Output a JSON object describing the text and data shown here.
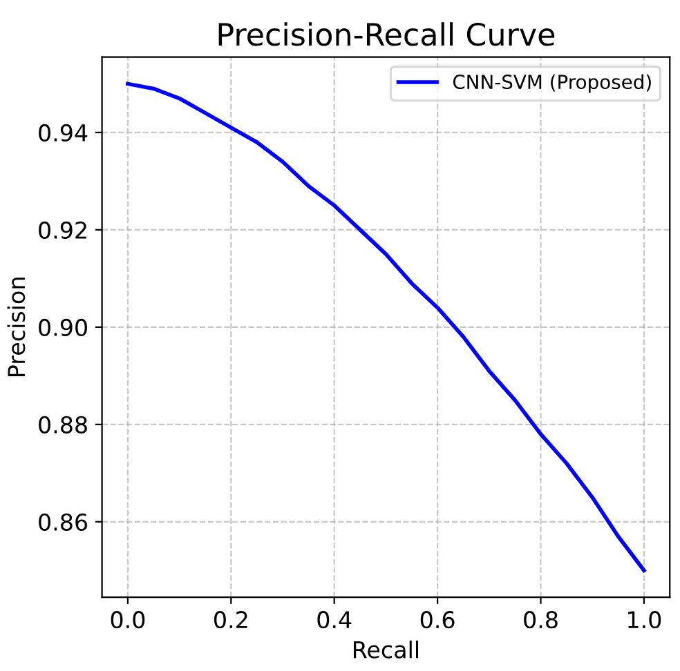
{
  "chart_data": {
    "type": "line",
    "title": "Precision-Recall Curve",
    "xlabel": "Recall",
    "ylabel": "Precision",
    "x": [
      0.0,
      0.05,
      0.1,
      0.15,
      0.2,
      0.25,
      0.3,
      0.35,
      0.4,
      0.45,
      0.5,
      0.55,
      0.6,
      0.65,
      0.7,
      0.75,
      0.8,
      0.85,
      0.9,
      0.95,
      1.0
    ],
    "series": [
      {
        "name": "CNN-SVM (Proposed)",
        "color": "#0000ff",
        "values": [
          0.95,
          0.949,
          0.947,
          0.944,
          0.941,
          0.938,
          0.934,
          0.929,
          0.925,
          0.92,
          0.915,
          0.909,
          0.904,
          0.898,
          0.891,
          0.885,
          0.878,
          0.872,
          0.865,
          0.857,
          0.85
        ]
      }
    ],
    "xlim": [
      -0.05,
      1.05
    ],
    "ylim": [
      0.8445,
      0.9555
    ],
    "xticks": [
      {
        "value": 0.0,
        "label": "0.0"
      },
      {
        "value": 0.2,
        "label": "0.2"
      },
      {
        "value": 0.4,
        "label": "0.4"
      },
      {
        "value": 0.6,
        "label": "0.6"
      },
      {
        "value": 0.8,
        "label": "0.8"
      },
      {
        "value": 1.0,
        "label": "1.0"
      }
    ],
    "yticks": [
      {
        "value": 0.86,
        "label": "0.86"
      },
      {
        "value": 0.88,
        "label": "0.88"
      },
      {
        "value": 0.9,
        "label": "0.90"
      },
      {
        "value": 0.92,
        "label": "0.92"
      },
      {
        "value": 0.94,
        "label": "0.94"
      }
    ],
    "grid": true,
    "legend": "top right",
    "line_style": "solid",
    "marker": "none"
  }
}
